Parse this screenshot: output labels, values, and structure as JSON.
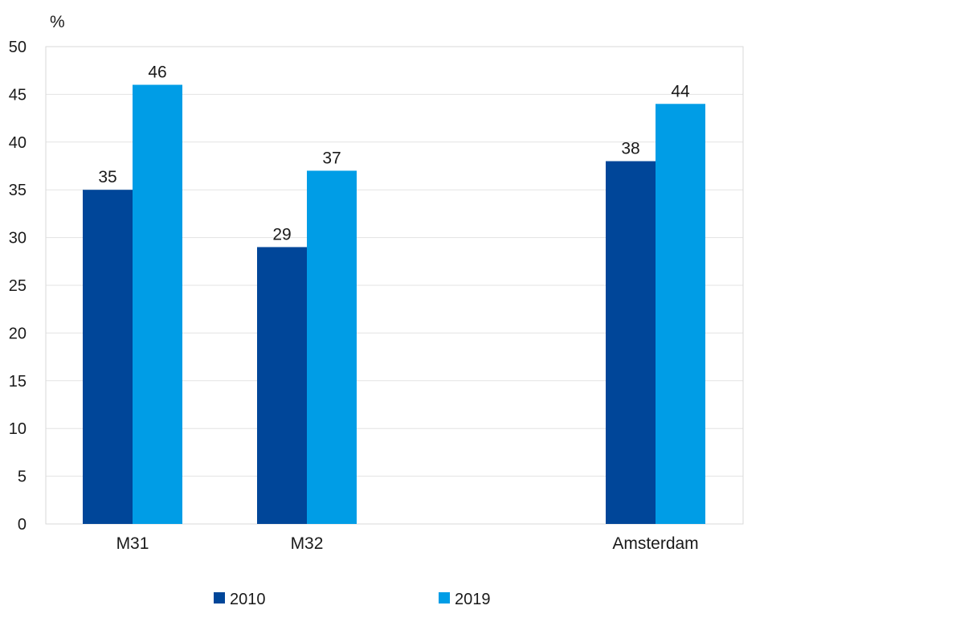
{
  "chart_data": {
    "type": "bar",
    "unit_label": "%",
    "categories": [
      "M31",
      "M32",
      "Amsterdam"
    ],
    "series": [
      {
        "name": "2010",
        "color": "#004699",
        "values": [
          35,
          29,
          38
        ]
      },
      {
        "name": "2019",
        "color": "#009de6",
        "values": [
          46,
          37,
          44
        ]
      }
    ],
    "ylim": [
      0,
      50
    ],
    "yticks": [
      0,
      5,
      10,
      15,
      20,
      25,
      30,
      35,
      40,
      45,
      50
    ],
    "grid": true,
    "legend_position": "bottom"
  }
}
